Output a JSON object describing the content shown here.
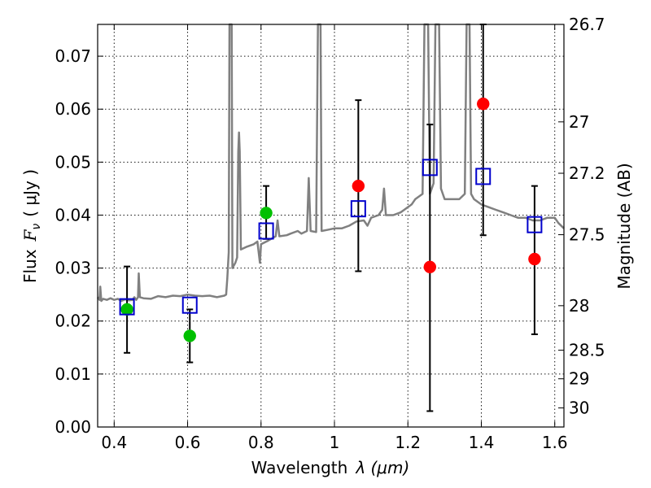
{
  "chart_data": {
    "type": "scatter",
    "xlabel_text": "Wavelength",
    "xlabel_math": "λ (μm)",
    "ylabel_text": "Flux",
    "ylabel_math": "F",
    "ylabel_sub": "ν",
    "ylabel_unit": "( μJy )",
    "ylabel_right": "Magnitude (AB)",
    "xlim": [
      0.355,
      1.625
    ],
    "ylim": [
      0.0,
      0.076
    ],
    "grid": true,
    "x_ticks": [
      {
        "value": 0.4,
        "label": "0.4"
      },
      {
        "value": 0.6,
        "label": "0.6"
      },
      {
        "value": 0.8,
        "label": "0.8"
      },
      {
        "value": 1.0,
        "label": "1"
      },
      {
        "value": 1.2,
        "label": "1.2"
      },
      {
        "value": 1.4,
        "label": "1.4"
      },
      {
        "value": 1.6,
        "label": "1.6"
      }
    ],
    "y_ticks": [
      {
        "value": 0.0,
        "label": "0.00"
      },
      {
        "value": 0.01,
        "label": "0.01"
      },
      {
        "value": 0.02,
        "label": "0.02"
      },
      {
        "value": 0.03,
        "label": "0.03"
      },
      {
        "value": 0.04,
        "label": "0.04"
      },
      {
        "value": 0.05,
        "label": "0.05"
      },
      {
        "value": 0.06,
        "label": "0.06"
      },
      {
        "value": 0.07,
        "label": "0.07"
      }
    ],
    "right_ticks": [
      {
        "label": "26.7",
        "flux": 0.076
      },
      {
        "label": "27",
        "flux": 0.0576
      },
      {
        "label": "27.2",
        "flux": 0.0479
      },
      {
        "label": "27.5",
        "flux": 0.0363
      },
      {
        "label": "28",
        "flux": 0.0229
      },
      {
        "label": "28.5",
        "flux": 0.0145
      },
      {
        "label": "29",
        "flux": 0.0091
      },
      {
        "label": "30",
        "flux": 0.0036
      }
    ],
    "model_spectrum": {
      "color": "#808080",
      "points": [
        [
          0.355,
          0.0245
        ],
        [
          0.36,
          0.024
        ],
        [
          0.362,
          0.0265
        ],
        [
          0.365,
          0.0238
        ],
        [
          0.37,
          0.0242
        ],
        [
          0.38,
          0.024
        ],
        [
          0.39,
          0.0243
        ],
        [
          0.4,
          0.024
        ],
        [
          0.41,
          0.0242
        ],
        [
          0.42,
          0.0238
        ],
        [
          0.43,
          0.0241
        ],
        [
          0.44,
          0.0239
        ],
        [
          0.45,
          0.024
        ],
        [
          0.455,
          0.0245
        ],
        [
          0.46,
          0.024
        ],
        [
          0.465,
          0.0245
        ],
        [
          0.467,
          0.029
        ],
        [
          0.47,
          0.0245
        ],
        [
          0.48,
          0.0243
        ],
        [
          0.5,
          0.0242
        ],
        [
          0.52,
          0.0247
        ],
        [
          0.54,
          0.0245
        ],
        [
          0.56,
          0.0248
        ],
        [
          0.58,
          0.0247
        ],
        [
          0.6,
          0.025
        ],
        [
          0.62,
          0.0248
        ],
        [
          0.64,
          0.0247
        ],
        [
          0.66,
          0.0248
        ],
        [
          0.68,
          0.0245
        ],
        [
          0.7,
          0.0248
        ],
        [
          0.705,
          0.025
        ],
        [
          0.708,
          0.028
        ],
        [
          0.712,
          0.033
        ],
        [
          0.714,
          0.076
        ],
        [
          0.72,
          0.076
        ],
        [
          0.722,
          0.03
        ],
        [
          0.73,
          0.031
        ],
        [
          0.735,
          0.032
        ],
        [
          0.738,
          0.052
        ],
        [
          0.74,
          0.0556
        ],
        [
          0.742,
          0.052
        ],
        [
          0.745,
          0.0335
        ],
        [
          0.76,
          0.034
        ],
        [
          0.78,
          0.0345
        ],
        [
          0.79,
          0.035
        ],
        [
          0.797,
          0.031
        ],
        [
          0.8,
          0.0345
        ],
        [
          0.82,
          0.0352
        ],
        [
          0.84,
          0.036
        ],
        [
          0.845,
          0.039
        ],
        [
          0.85,
          0.036
        ],
        [
          0.87,
          0.0362
        ],
        [
          0.88,
          0.0365
        ],
        [
          0.9,
          0.037
        ],
        [
          0.91,
          0.0365
        ],
        [
          0.925,
          0.037
        ],
        [
          0.93,
          0.047
        ],
        [
          0.935,
          0.037
        ],
        [
          0.95,
          0.0368
        ],
        [
          0.955,
          0.076
        ],
        [
          0.962,
          0.076
        ],
        [
          0.965,
          0.037
        ],
        [
          0.98,
          0.0372
        ],
        [
          1.0,
          0.0375
        ],
        [
          1.02,
          0.0375
        ],
        [
          1.04,
          0.038
        ],
        [
          1.06,
          0.0388
        ],
        [
          1.08,
          0.039
        ],
        [
          1.09,
          0.038
        ],
        [
          1.1,
          0.0395
        ],
        [
          1.12,
          0.04
        ],
        [
          1.13,
          0.041
        ],
        [
          1.135,
          0.045
        ],
        [
          1.14,
          0.04
        ],
        [
          1.16,
          0.04
        ],
        [
          1.18,
          0.0405
        ],
        [
          1.19,
          0.041
        ],
        [
          1.2,
          0.0415
        ],
        [
          1.21,
          0.042
        ],
        [
          1.22,
          0.043
        ],
        [
          1.24,
          0.044
        ],
        [
          1.245,
          0.076
        ],
        [
          1.255,
          0.076
        ],
        [
          1.26,
          0.044
        ],
        [
          1.27,
          0.046
        ],
        [
          1.275,
          0.076
        ],
        [
          1.285,
          0.076
        ],
        [
          1.29,
          0.045
        ],
        [
          1.3,
          0.043
        ],
        [
          1.32,
          0.043
        ],
        [
          1.34,
          0.043
        ],
        [
          1.355,
          0.044
        ],
        [
          1.36,
          0.076
        ],
        [
          1.368,
          0.076
        ],
        [
          1.372,
          0.044
        ],
        [
          1.38,
          0.043
        ],
        [
          1.4,
          0.042
        ],
        [
          1.42,
          0.0415
        ],
        [
          1.44,
          0.041
        ],
        [
          1.46,
          0.0405
        ],
        [
          1.48,
          0.04
        ],
        [
          1.5,
          0.0395
        ],
        [
          1.52,
          0.0395
        ],
        [
          1.54,
          0.039
        ],
        [
          1.56,
          0.039
        ],
        [
          1.58,
          0.0395
        ],
        [
          1.6,
          0.0395
        ],
        [
          1.61,
          0.0385
        ],
        [
          1.625,
          0.0375
        ]
      ]
    },
    "series": [
      {
        "marker": "filled-circle",
        "color": "#00c000",
        "points": [
          {
            "x": 0.435,
            "y": 0.0222
          },
          {
            "x": 0.606,
            "y": 0.0172
          },
          {
            "x": 0.814,
            "y": 0.0404
          }
        ]
      },
      {
        "marker": "filled-circle",
        "color": "#ff0000",
        "points": [
          {
            "x": 1.065,
            "y": 0.0455
          },
          {
            "x": 1.26,
            "y": 0.0302
          },
          {
            "x": 1.405,
            "y": 0.061
          },
          {
            "x": 1.545,
            "y": 0.0317
          }
        ]
      },
      {
        "marker": "open-square",
        "color": "#0000cc",
        "points": [
          {
            "x": 0.435,
            "y": 0.0227
          },
          {
            "x": 0.606,
            "y": 0.023
          },
          {
            "x": 0.814,
            "y": 0.037
          },
          {
            "x": 1.065,
            "y": 0.0412
          },
          {
            "x": 1.26,
            "y": 0.049
          },
          {
            "x": 1.405,
            "y": 0.0473
          },
          {
            "x": 1.545,
            "y": 0.0382
          }
        ]
      }
    ],
    "error_bars": [
      {
        "x": 0.435,
        "low": 0.014,
        "high": 0.0303
      },
      {
        "x": 0.606,
        "low": 0.0122,
        "high": 0.0222
      },
      {
        "x": 0.814,
        "low": 0.0355,
        "high": 0.0455
      },
      {
        "x": 1.065,
        "low": 0.0294,
        "high": 0.0617
      },
      {
        "x": 1.26,
        "low": 0.003,
        "high": 0.0571
      },
      {
        "x": 1.405,
        "low": 0.0362,
        "high": 0.076
      },
      {
        "x": 1.545,
        "low": 0.0175,
        "high": 0.0455
      }
    ]
  }
}
